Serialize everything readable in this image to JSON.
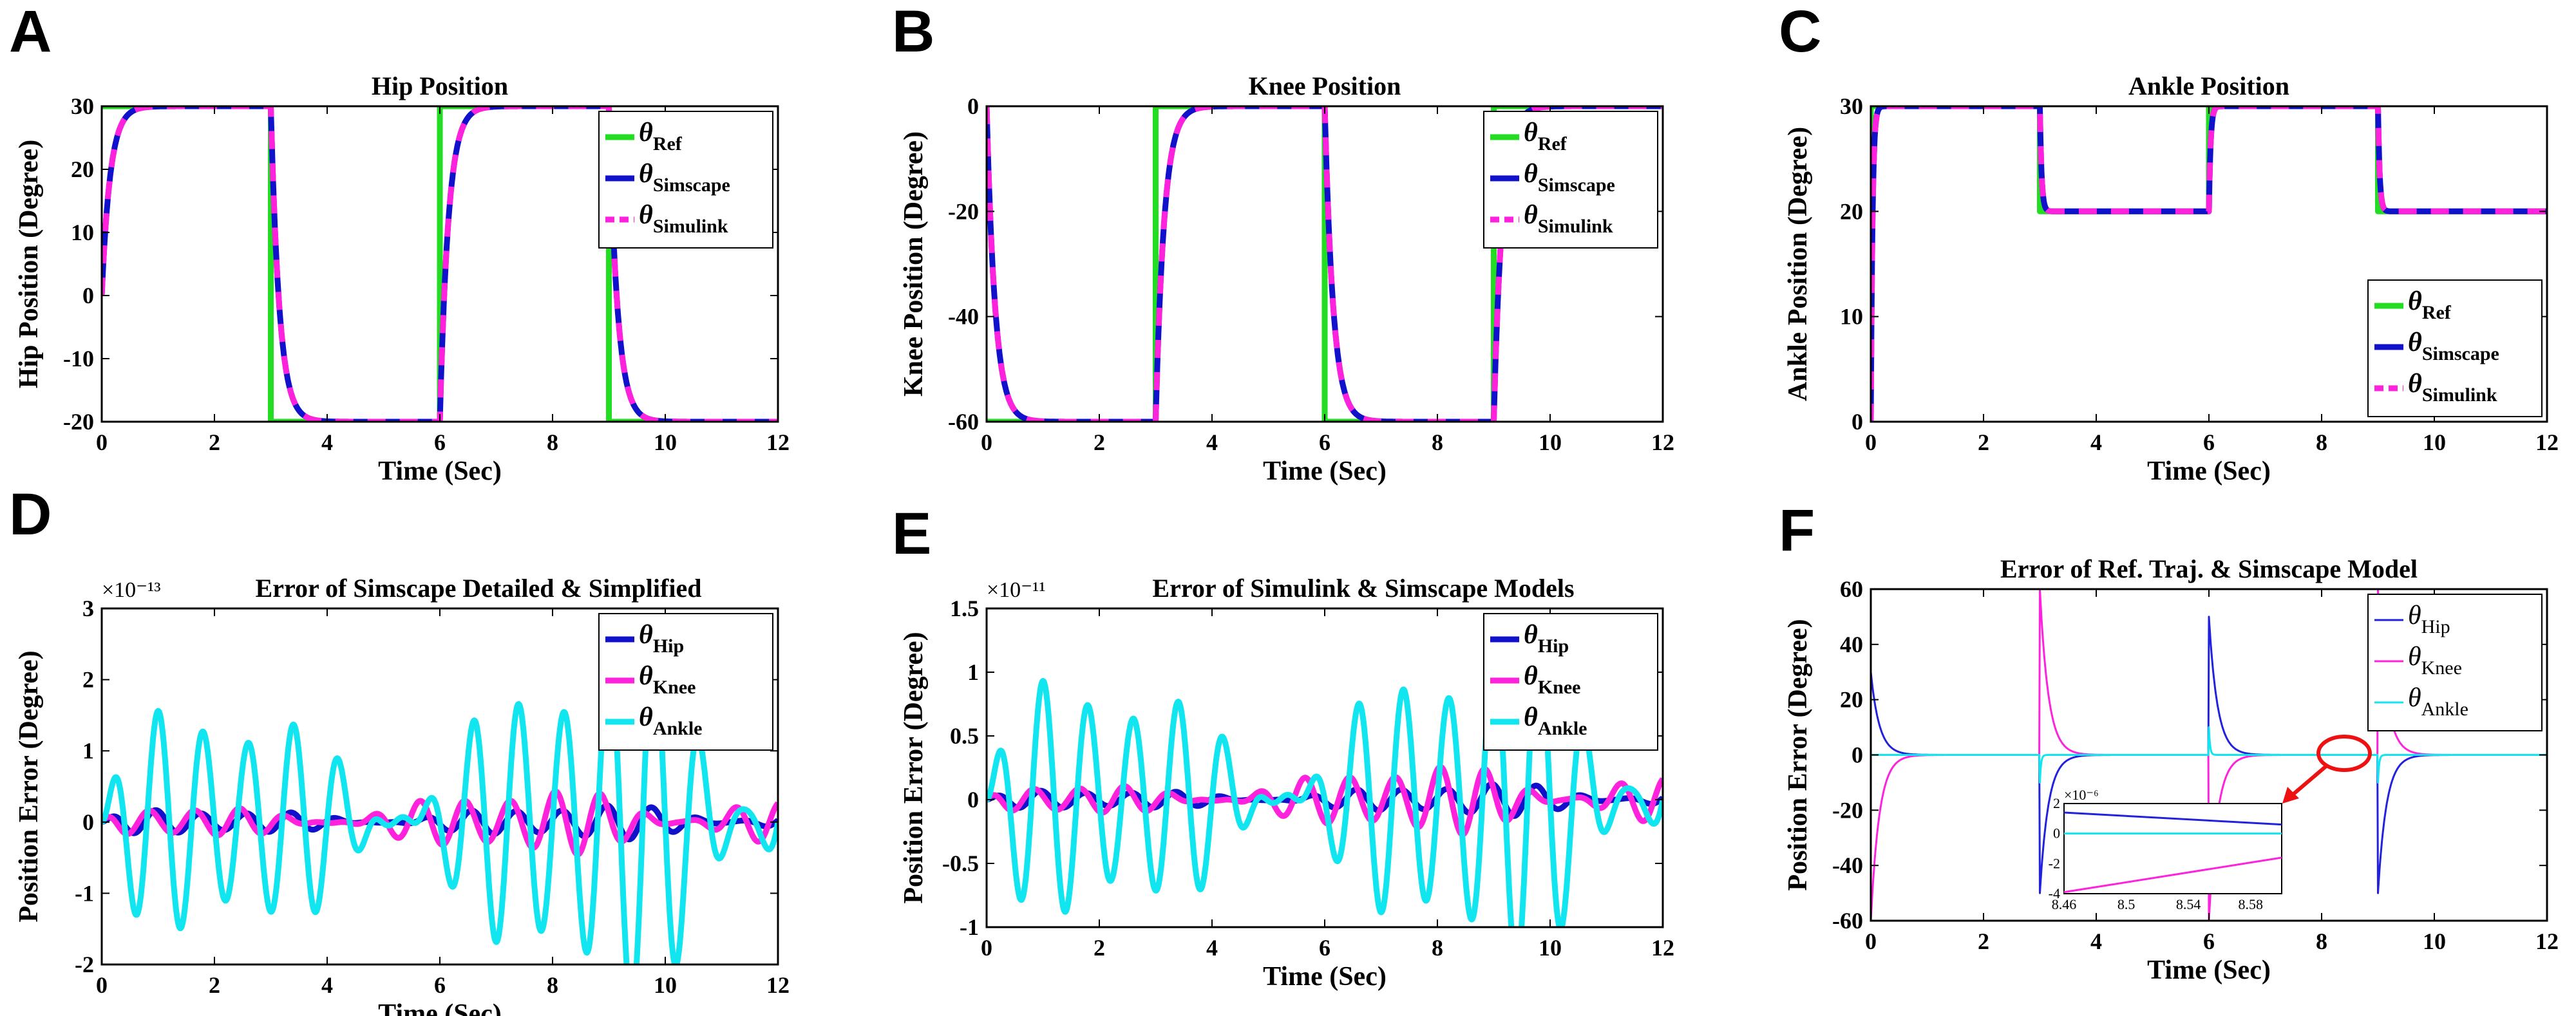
{
  "chart_data": [
    {
      "panel": "A",
      "type": "line",
      "title": "Hip Position",
      "xlabel": "Time (Sec)",
      "ylabel": "Hip Position (Degree)",
      "xlim": [
        0,
        12
      ],
      "ylim": [
        -20,
        30
      ],
      "xticks": [
        "0",
        "2",
        "4",
        "6",
        "8",
        "10",
        "12"
      ],
      "yticks": [
        "-20",
        "-10",
        "0",
        "10",
        "20",
        "30"
      ],
      "legend_position": "top-right",
      "series": [
        {
          "name": "θRef",
          "sym": "θ",
          "sub": "Ref",
          "color": "#22dd22",
          "kind": "ref",
          "x": [
            0,
            3,
            3,
            6,
            6,
            9,
            9,
            12
          ],
          "y": [
            30,
            30,
            -20,
            -20,
            30,
            30,
            -20,
            -20
          ]
        },
        {
          "name": "θSimscape",
          "sym": "θ",
          "sub": "Simscape",
          "color": "#1111cc",
          "kind": "resp",
          "start": 0,
          "jumps": [
            [
              3,
              -20
            ],
            [
              6,
              30
            ],
            [
              9,
              -20
            ]
          ],
          "tau": 0.15
        },
        {
          "name": "θSimulink",
          "sym": "θ",
          "sub": "Simulink",
          "color": "#ff22dd",
          "kind": "resp",
          "start": 0,
          "jumps": [
            [
              3,
              -20
            ],
            [
              6,
              30
            ],
            [
              9,
              -20
            ]
          ],
          "tau": 0.15,
          "dashed": true
        }
      ]
    },
    {
      "panel": "B",
      "type": "line",
      "title": "Knee Position",
      "xlabel": "Time (Sec)",
      "ylabel": "Knee Position (Degree)",
      "xlim": [
        0,
        12
      ],
      "ylim": [
        -60,
        0
      ],
      "xticks": [
        "0",
        "2",
        "4",
        "6",
        "8",
        "10",
        "12"
      ],
      "yticks": [
        "-60",
        "-40",
        "-20",
        "0"
      ],
      "legend_position": "top-right",
      "series": [
        {
          "name": "θRef",
          "sym": "θ",
          "sub": "Ref",
          "color": "#22dd22",
          "kind": "ref",
          "x": [
            0,
            3,
            3,
            6,
            6,
            9,
            9,
            12
          ],
          "y": [
            -60,
            -60,
            0,
            0,
            -60,
            -60,
            0,
            0
          ]
        },
        {
          "name": "θSimscape",
          "sym": "θ",
          "sub": "Simscape",
          "color": "#1111cc",
          "kind": "resp",
          "start": 0,
          "target0": -60,
          "jumps": [
            [
              3,
              0
            ],
            [
              6,
              -60
            ],
            [
              9,
              0
            ]
          ],
          "tau": 0.15
        },
        {
          "name": "θSimulink",
          "sym": "θ",
          "sub": "Simulink",
          "color": "#ff22dd",
          "kind": "resp",
          "start": 0,
          "target0": -60,
          "jumps": [
            [
              3,
              0
            ],
            [
              6,
              -60
            ],
            [
              9,
              0
            ]
          ],
          "tau": 0.15,
          "dashed": true
        }
      ]
    },
    {
      "panel": "C",
      "type": "line",
      "title": "Ankle Position",
      "xlabel": "Time (Sec)",
      "ylabel": "Ankle Position (Degree)",
      "xlim": [
        0,
        12
      ],
      "ylim": [
        0,
        30
      ],
      "xticks": [
        "0",
        "2",
        "4",
        "6",
        "8",
        "10",
        "12"
      ],
      "yticks": [
        "0",
        "10",
        "20",
        "30"
      ],
      "legend_position": "bottom-right",
      "series": [
        {
          "name": "θRef",
          "sym": "θ",
          "sub": "Ref",
          "color": "#22dd22",
          "kind": "ref",
          "x": [
            0,
            0,
            3,
            3,
            6,
            6,
            9,
            9,
            12
          ],
          "y": [
            0,
            30,
            30,
            20,
            20,
            30,
            30,
            20,
            20
          ]
        },
        {
          "name": "θSimscape",
          "sym": "θ",
          "sub": "Simscape",
          "color": "#1111cc",
          "kind": "resp",
          "start": 0,
          "target0": 30,
          "jumps": [
            [
              3,
              20
            ],
            [
              6,
              30
            ],
            [
              9,
              20
            ]
          ],
          "tau": 0.03
        },
        {
          "name": "θSimulink",
          "sym": "θ",
          "sub": "Simulink",
          "color": "#ff22dd",
          "kind": "resp",
          "start": 0,
          "target0": 30,
          "jumps": [
            [
              3,
              20
            ],
            [
              6,
              30
            ],
            [
              9,
              20
            ]
          ],
          "tau": 0.03,
          "dashed": true
        }
      ]
    },
    {
      "panel": "D",
      "type": "line",
      "title": "Error of Simscape Detailed & Simplified",
      "sci_exponent": "×10⁻¹³",
      "xlabel": "Time (Sec)",
      "ylabel": "Position Error (Degree)",
      "xlim": [
        0,
        12
      ],
      "ylim": [
        -2,
        3
      ],
      "xticks": [
        "0",
        "2",
        "4",
        "6",
        "8",
        "10",
        "12"
      ],
      "yticks": [
        "-2",
        "-1",
        "0",
        "1",
        "2",
        "3"
      ],
      "legend_position": "top-right",
      "series": [
        {
          "name": "θHip",
          "sym": "θ",
          "sub": "Hip",
          "color": "#1111cc",
          "kind": "osc",
          "amp": 0.15,
          "grow": 0.6,
          "period": 0.8,
          "phase": 0.3
        },
        {
          "name": "θKnee",
          "sym": "θ",
          "sub": "Knee",
          "color": "#ff22dd",
          "kind": "osc",
          "amp": 0.2,
          "grow": 1.6,
          "period": 0.8,
          "phase": 1.2
        },
        {
          "name": "θAnkle",
          "sym": "θ",
          "sub": "Ankle",
          "color": "#11e5f0",
          "kind": "osc",
          "amp": 1.3,
          "grow": 1.0,
          "period": 0.8,
          "phase": 0.0
        }
      ]
    },
    {
      "panel": "E",
      "type": "line",
      "title": "Error of Simulink & Simscape Models",
      "sci_exponent": "×10⁻¹¹",
      "xlabel": "Time (Sec)",
      "ylabel": "Position Error (Degree)",
      "xlim": [
        0,
        12
      ],
      "ylim": [
        -1,
        1.5
      ],
      "xticks": [
        "0",
        "2",
        "4",
        "6",
        "8",
        "10",
        "12"
      ],
      "yticks": [
        "-1",
        "-0.5",
        "0",
        "0.5",
        "1",
        "1.5"
      ],
      "legend_position": "top-right",
      "series": [
        {
          "name": "θHip",
          "sym": "θ",
          "sub": "Hip",
          "color": "#1111cc",
          "kind": "osc",
          "amp": 0.06,
          "grow": 1.2,
          "period": 0.8,
          "phase": 0.3
        },
        {
          "name": "θKnee",
          "sym": "θ",
          "sub": "Knee",
          "color": "#ff22dd",
          "kind": "osc",
          "amp": 0.1,
          "grow": 2.2,
          "period": 0.8,
          "phase": 1.2
        },
        {
          "name": "θAnkle",
          "sym": "θ",
          "sub": "Ankle",
          "color": "#11e5f0",
          "kind": "osc",
          "amp": 0.8,
          "grow": 0.6,
          "period": 0.8,
          "phase": 0.0
        }
      ]
    },
    {
      "panel": "F",
      "type": "line",
      "title": "Error of Ref. Traj. & Simscape Model",
      "xlabel": "Time (Sec)",
      "ylabel": "Position Error (Degree)",
      "xlim": [
        0,
        12
      ],
      "ylim": [
        -60,
        60
      ],
      "xticks": [
        "0",
        "2",
        "4",
        "6",
        "8",
        "10",
        "12"
      ],
      "yticks": [
        "-60",
        "-40",
        "-20",
        "0",
        "20",
        "40",
        "60"
      ],
      "legend_position": "top-right",
      "series": [
        {
          "name": "θHip",
          "sym": "θ",
          "sub": "Hip",
          "color": "#2222dd",
          "kind": "spike",
          "spikes": [
            [
              0,
              30
            ],
            [
              3,
              -50
            ],
            [
              6,
              50
            ],
            [
              9,
              -50
            ]
          ],
          "tau": 0.15
        },
        {
          "name": "θKnee",
          "sym": "θ",
          "sub": "Knee",
          "color": "#ff22dd",
          "kind": "spike",
          "spikes": [
            [
              0,
              -60
            ],
            [
              3,
              60
            ],
            [
              6,
              -60
            ],
            [
              9,
              60
            ]
          ],
          "tau": 0.15
        },
        {
          "name": "θAnkle",
          "sym": "θ",
          "sub": "Ankle",
          "color": "#11e5f0",
          "kind": "spike",
          "spikes": [
            [
              3,
              -10
            ],
            [
              6,
              10
            ],
            [
              9,
              -10
            ]
          ],
          "tau": 0.02
        }
      ],
      "inset": {
        "exponent": "×10⁻⁶",
        "xlim": [
          8.46,
          8.6
        ],
        "ylim": [
          -4,
          2
        ],
        "xticks": [
          "8.46",
          "8.5",
          "8.54",
          "8.58"
        ],
        "yticks": [
          "-4",
          "-2",
          "0",
          "2"
        ],
        "series": [
          {
            "color": "#2222dd",
            "x": [
              8.46,
              8.6
            ],
            "y": [
              1.4,
              0.6
            ]
          },
          {
            "color": "#11e5f0",
            "x": [
              8.46,
              8.6
            ],
            "y": [
              0,
              0
            ]
          },
          {
            "color": "#ff22dd",
            "x": [
              8.46,
              8.6
            ],
            "y": [
              -3.9,
              -1.6
            ]
          }
        ]
      }
    }
  ]
}
